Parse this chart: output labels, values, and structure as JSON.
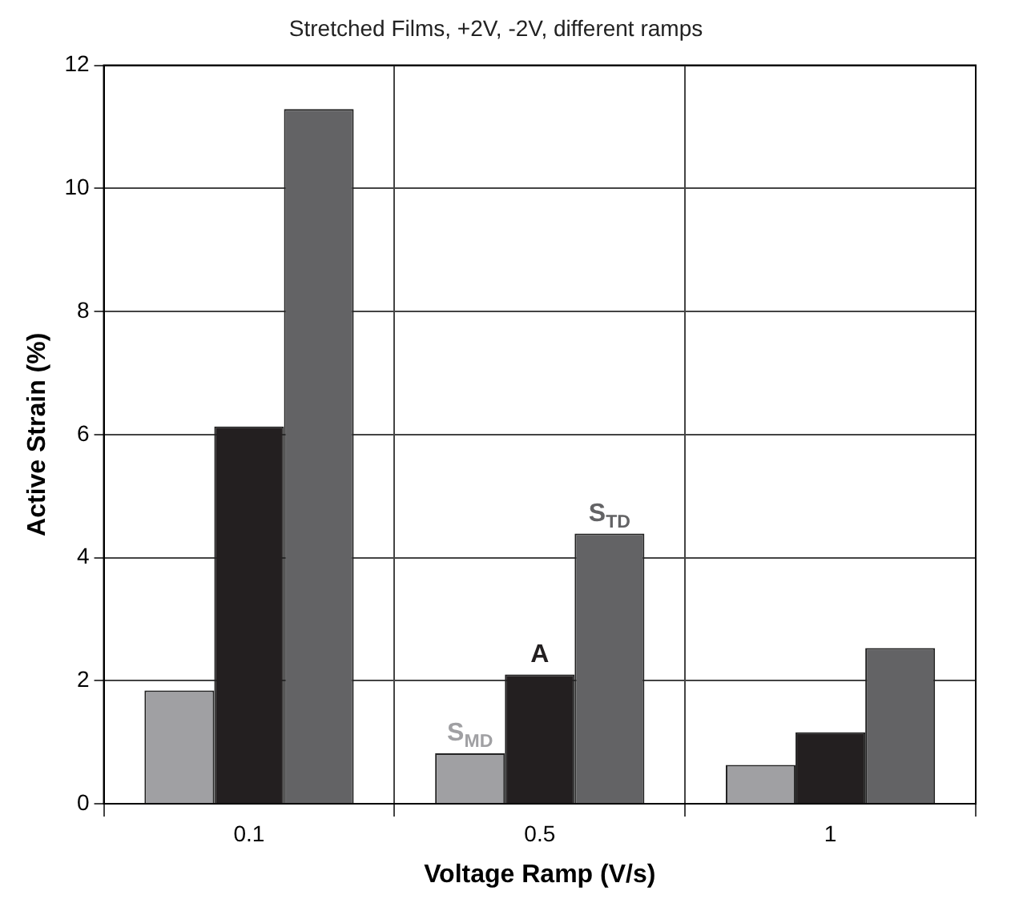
{
  "chart_data": {
    "type": "bar",
    "title": "Stretched Films, +2V, -2V, different ramps",
    "xlabel": "Voltage Ramp (V/s)",
    "ylabel": "Active Strain (%)",
    "categories": [
      "0.1",
      "0.5",
      "1"
    ],
    "series": [
      {
        "name": "S$_{MD}$",
        "color": "#a0a0a3",
        "values": [
          1.84,
          0.82,
          0.63
        ]
      },
      {
        "name": "A",
        "color": "#231f20",
        "values": [
          6.13,
          2.1,
          1.16
        ]
      },
      {
        "name": "S$_{TD}$",
        "color": "#636365",
        "values": [
          11.29,
          4.39,
          2.53
        ]
      }
    ],
    "ylim": [
      0,
      12
    ],
    "yticks": [
      0,
      2,
      4,
      6,
      8,
      10,
      12
    ],
    "grid": true,
    "legend": false
  }
}
